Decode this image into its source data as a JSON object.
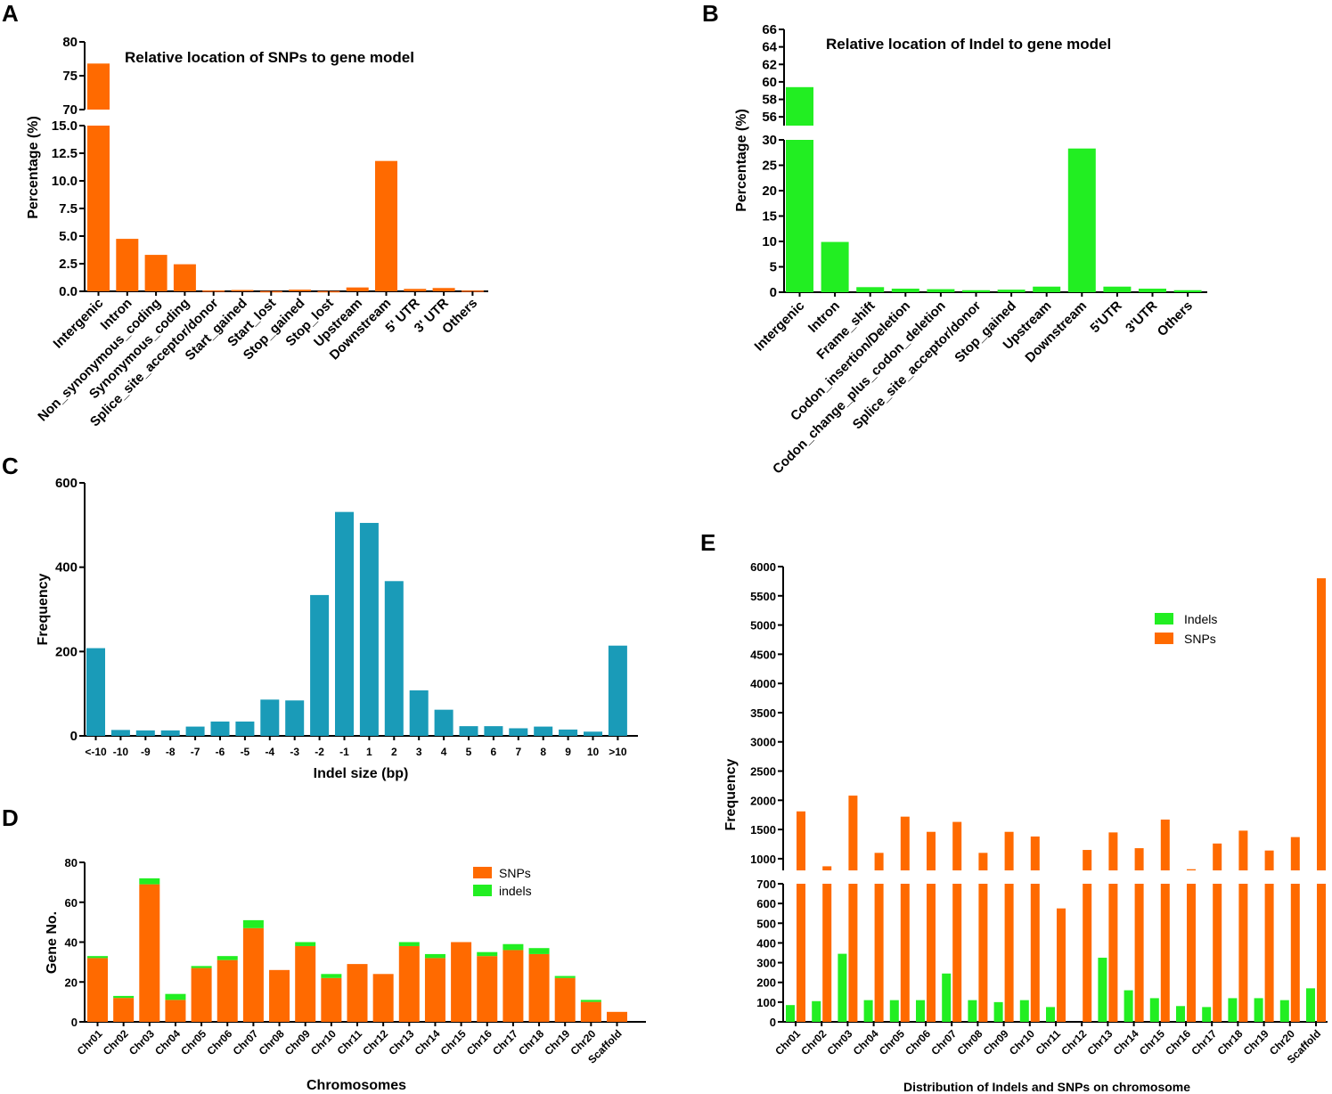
{
  "panels": {
    "a": {
      "label": "A"
    },
    "b": {
      "label": "B"
    },
    "c": {
      "label": "C"
    },
    "d": {
      "label": "D"
    },
    "e": {
      "label": "E"
    }
  },
  "colors": {
    "snp": "#ff6a00",
    "indel": "#22ee22",
    "size": "#1a9bb8"
  },
  "chart_data": [
    {
      "id": "A",
      "type": "bar",
      "title": "Relative location of SNPs to gene model",
      "xlabel": "",
      "ylabel": "Percentage (%)",
      "axis_break": true,
      "ylim_lower": [
        0,
        15
      ],
      "ylim_upper": [
        70,
        80
      ],
      "ticks_lower": [
        "0.0",
        "2.5",
        "5.0",
        "7.5",
        "10.0",
        "12.5",
        "15.0"
      ],
      "ticks_upper": [
        "70",
        "75",
        "80"
      ],
      "categories": [
        "Intergenic",
        "Intron",
        "Non_synonymous_coding",
        "Synonymous_coding",
        "Splice_site_acceptor/donor",
        "Start_gained",
        "Start_lost",
        "Stop_gained",
        "Stop_lost",
        "Upstream",
        "Downstream",
        "5' UTR",
        "3' UTR",
        "Others"
      ],
      "values": [
        76.8,
        4.75,
        3.3,
        2.45,
        0.08,
        0.12,
        0.02,
        0.15,
        0.02,
        0.35,
        11.8,
        0.22,
        0.3,
        0.07
      ]
    },
    {
      "id": "B",
      "type": "bar",
      "title": "Relative location of Indel to gene model",
      "xlabel": "",
      "ylabel": "Percentage (%)",
      "axis_break": true,
      "ylim_lower": [
        0,
        30
      ],
      "ylim_upper": [
        55,
        66
      ],
      "ticks_lower": [
        "0",
        "5",
        "10",
        "15",
        "20",
        "25",
        "30"
      ],
      "ticks_upper": [
        "56",
        "58",
        "60",
        "62",
        "64",
        "66"
      ],
      "categories": [
        "Intergenic",
        "Intron",
        "Frame_shift",
        "Codon_insertion/Deletion",
        "Codon_change_plus_codon_deletion",
        "Splice_site_acceptor/donor",
        "Stop_gained",
        "Upstream",
        "Downstream",
        "5'UTR",
        "3'UTR",
        "Others"
      ],
      "values": [
        59.4,
        9.9,
        1.0,
        0.7,
        0.6,
        0.4,
        0.5,
        1.1,
        28.3,
        1.1,
        0.7,
        0.4
      ]
    },
    {
      "id": "C",
      "type": "bar",
      "title": "",
      "xlabel": "Indel size (bp)",
      "ylabel": "Frequency",
      "ylim": [
        0,
        600
      ],
      "ticks": [
        "0",
        "200",
        "400",
        "600"
      ],
      "categories": [
        "<-10",
        "-10",
        "-9",
        "-8",
        "-7",
        "-6",
        "-5",
        "-4",
        "-3",
        "-2",
        "-1",
        "1",
        "2",
        "3",
        "4",
        "5",
        "6",
        "7",
        "8",
        "9",
        "10",
        ">10"
      ],
      "values": [
        208,
        14,
        13,
        13,
        22,
        34,
        34,
        86,
        84,
        334,
        531,
        505,
        367,
        108,
        62,
        23,
        23,
        18,
        22,
        15,
        10,
        214
      ]
    },
    {
      "id": "D",
      "type": "bar",
      "stacked": true,
      "title": "",
      "xlabel": "Chromosomes",
      "ylabel": "Gene No.",
      "ylim": [
        0,
        80
      ],
      "ticks": [
        "0",
        "20",
        "40",
        "60",
        "80"
      ],
      "legend": [
        "SNPs",
        "indels"
      ],
      "categories": [
        "Chr01",
        "Chr02",
        "Chr03",
        "Chr04",
        "Chr05",
        "Chr06",
        "Chr07",
        "Chr08",
        "Chr09",
        "Chr10",
        "Chr11",
        "Chr12",
        "Chr13",
        "Chr14",
        "Chr15",
        "Chr16",
        "Chr17",
        "Chr18",
        "Chr19",
        "Chr20",
        "Scaffold"
      ],
      "series": [
        {
          "name": "SNPs",
          "values": [
            32,
            12,
            69,
            11,
            27,
            31,
            47,
            26,
            38,
            22,
            29,
            24,
            38,
            32,
            40,
            33,
            36,
            34,
            22,
            10,
            5
          ]
        },
        {
          "name": "indels",
          "values": [
            1,
            1,
            3,
            3,
            1,
            2,
            4,
            0,
            2,
            2,
            0,
            0,
            2,
            2,
            0,
            2,
            3,
            3,
            1,
            1,
            0
          ]
        }
      ]
    },
    {
      "id": "E",
      "type": "bar",
      "title": "",
      "xlabel": "Distribution of Indels and SNPs on chromosome",
      "ylabel": "Frequency",
      "axis_break": true,
      "ylim_lower": [
        0,
        700
      ],
      "ylim_upper": [
        800,
        6000
      ],
      "ticks_lower": [
        "0",
        "100",
        "200",
        "300",
        "400",
        "500",
        "600",
        "700"
      ],
      "ticks_upper": [
        "1000",
        "1500",
        "2000",
        "2500",
        "3000",
        "3500",
        "4000",
        "4500",
        "5000",
        "5500",
        "6000"
      ],
      "legend": [
        "Indels",
        "SNPs"
      ],
      "categories": [
        "Chr01",
        "Chr02",
        "Chr03",
        "Chr04",
        "Chr05",
        "Chr06",
        "Chr07",
        "Chr08",
        "Chr09",
        "Chr10",
        "Chr11",
        "Chr12",
        "Chr13",
        "Chr14",
        "Chr15",
        "Chr16",
        "Chr17",
        "Chr18",
        "Chr19",
        "Chr20",
        "Scaffold"
      ],
      "series": [
        {
          "name": "Indels",
          "values": [
            85,
            105,
            345,
            110,
            110,
            110,
            245,
            110,
            100,
            110,
            75,
            0,
            325,
            160,
            120,
            80,
            75,
            120,
            120,
            110,
            170
          ]
        },
        {
          "name": "SNPs",
          "values": [
            1810,
            870,
            2080,
            1100,
            1720,
            1460,
            1630,
            1100,
            1460,
            1380,
            575,
            1150,
            1450,
            1180,
            1670,
            820,
            1260,
            1480,
            1140,
            1370,
            5800
          ]
        }
      ]
    }
  ]
}
